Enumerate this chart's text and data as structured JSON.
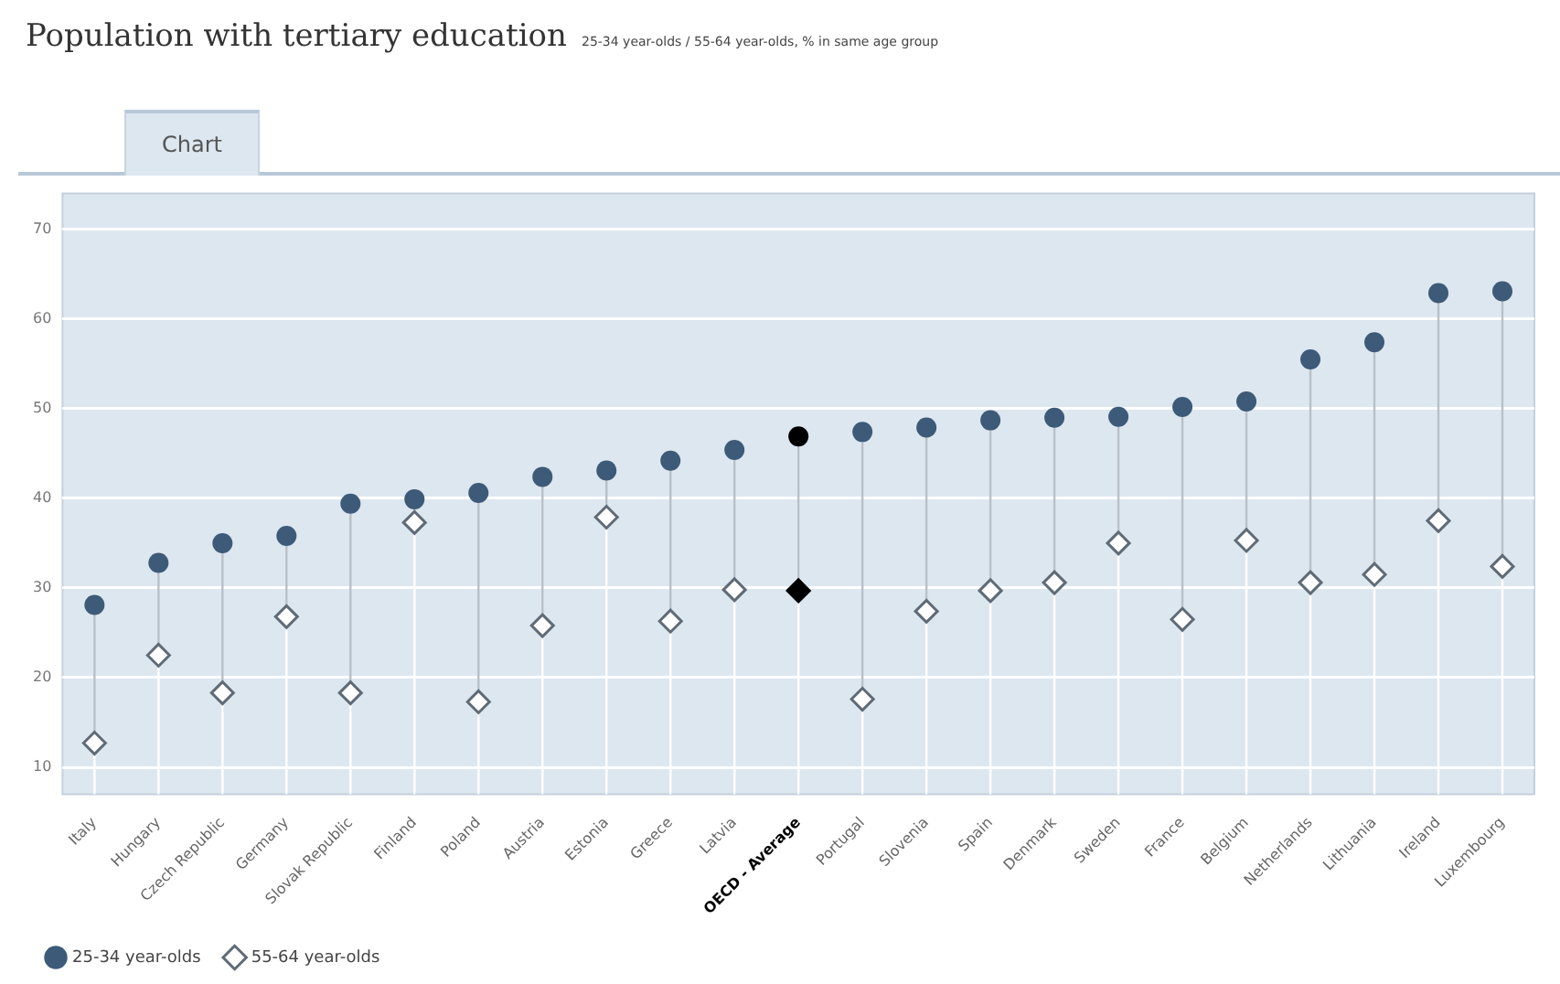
{
  "chart_data": {
    "type": "scatter",
    "title": "Population with tertiary education",
    "subtitle": "25-34 year-olds / 55-64 year-olds, % in same age group",
    "annotations": [
      "Chart"
    ],
    "categories": [
      "Italy",
      "Hungary",
      "Czech Republic",
      "Germany",
      "Slovak Republic",
      "Finland",
      "Poland",
      "Austria",
      "Estonia",
      "Greece",
      "Latvia",
      "OECD - Average",
      "Portugal",
      "Slovenia",
      "Spain",
      "Denmark",
      "Sweden",
      "France",
      "Belgium",
      "Netherlands",
      "Lithuania",
      "Ireland",
      "Luxembourg"
    ],
    "series": [
      {
        "name": "25-34 year-olds",
        "type": "scatter",
        "marker": "circle",
        "color": "#3d5a78",
        "colors": [
          "#3d5a78",
          "#3d5a78",
          "#3d5a78",
          "#3d5a78",
          "#3d5a78",
          "#3d5a78",
          "#3d5a78",
          "#3d5a78",
          "#3d5a78",
          "#3d5a78",
          "#3d5a78",
          "#000000",
          "#3d5a78",
          "#3d5a78",
          "#3d5a78",
          "#3d5a78",
          "#3d5a78",
          "#3d5a78",
          "#3d5a78",
          "#3d5a78",
          "#3d5a78",
          "#3d5a78",
          "#3d5a78"
        ],
        "values": [
          28.1,
          32.8,
          35.0,
          35.8,
          39.4,
          39.9,
          40.6,
          42.4,
          43.1,
          44.2,
          45.4,
          46.9,
          47.4,
          47.9,
          48.7,
          49.0,
          49.1,
          50.2,
          50.8,
          55.5,
          57.4,
          62.9,
          63.1
        ]
      },
      {
        "name": "55-64 year-olds",
        "type": "scatter",
        "marker": "diamond",
        "color": "#5f6b76",
        "colors": [
          "#5f6b76",
          "#5f6b76",
          "#5f6b76",
          "#5f6b76",
          "#5f6b76",
          "#5f6b76",
          "#5f6b76",
          "#5f6b76",
          "#5f6b76",
          "#5f6b76",
          "#5f6b76",
          "#000000",
          "#5f6b76",
          "#5f6b76",
          "#5f6b76",
          "#5f6b76",
          "#5f6b76",
          "#5f6b76",
          "#5f6b76",
          "#5f6b76",
          "#5f6b76",
          "#5f6b76",
          "#5f6b76"
        ],
        "values": [
          12.7,
          22.5,
          18.3,
          26.8,
          18.3,
          37.3,
          17.3,
          25.8,
          37.9,
          26.3,
          29.8,
          29.7,
          17.6,
          27.4,
          29.7,
          30.6,
          35.0,
          26.5,
          35.3,
          30.6,
          31.5,
          37.5,
          32.4
        ]
      }
    ],
    "ylim": [
      7,
      74
    ],
    "yticks": [
      10,
      20,
      30,
      40,
      50,
      60,
      70
    ],
    "grid": "y",
    "legend": "bottom left"
  }
}
